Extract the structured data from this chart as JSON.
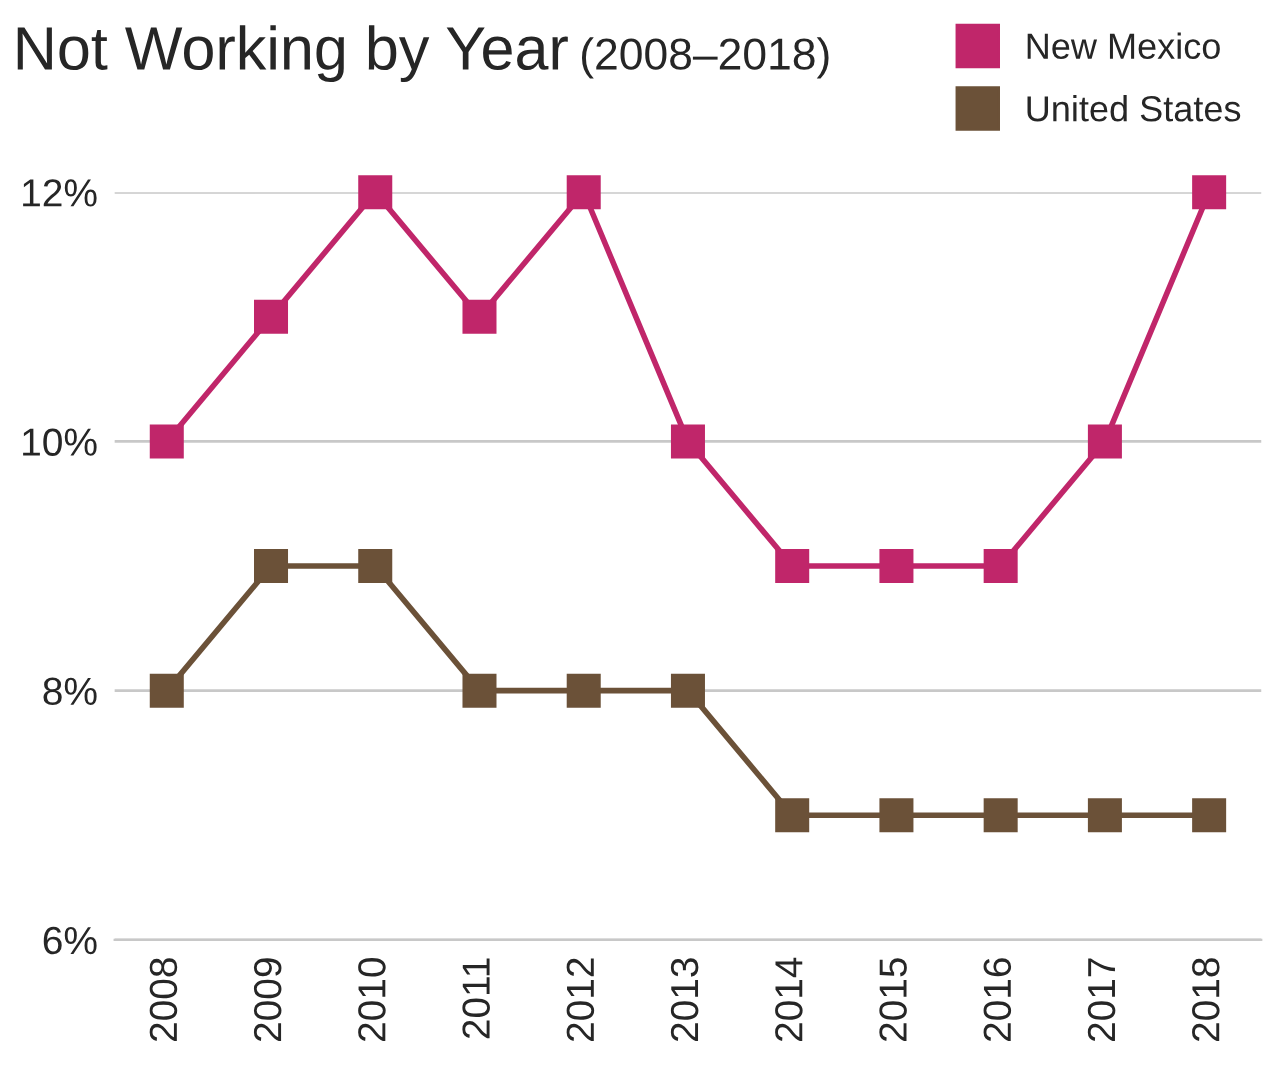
{
  "chart_data": {
    "type": "line",
    "title": "Not Working by Year",
    "subtitle": "(2008–2018)",
    "categories": [
      "2008",
      "2009",
      "2010",
      "2011",
      "2012",
      "2013",
      "2014",
      "2015",
      "2016",
      "2017",
      "2018"
    ],
    "series": [
      {
        "name": "New Mexico",
        "color": "#c0266a",
        "values": [
          10,
          11,
          12,
          11,
          12,
          10,
          9,
          9,
          9,
          10,
          12
        ]
      },
      {
        "name": "United States",
        "color": "#6b5138",
        "values": [
          8,
          9,
          9,
          8,
          8,
          8,
          7,
          7,
          7,
          7,
          7
        ]
      }
    ],
    "ylim": [
      6,
      12
    ],
    "yticks": [
      {
        "value": 6,
        "label": "6%"
      },
      {
        "value": 8,
        "label": "8%"
      },
      {
        "value": 10,
        "label": "10%"
      },
      {
        "value": 12,
        "label": "12%"
      }
    ],
    "grid": "y",
    "legend": "top right",
    "marker": "square",
    "line_style": "solid"
  }
}
